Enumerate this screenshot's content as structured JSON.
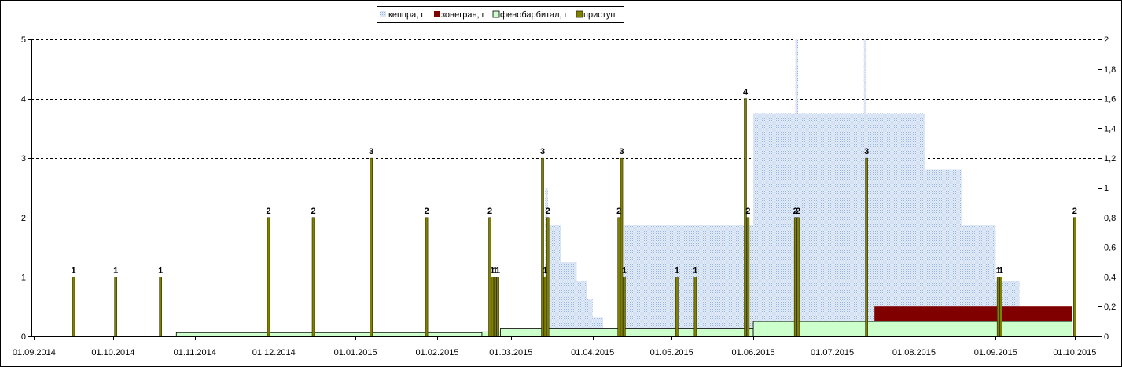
{
  "chart_data": {
    "type": "bar",
    "x_axis": {
      "type": "date",
      "min": "31.08.2014",
      "max": "10.10.2015",
      "ticks": [
        "01.09.2014",
        "01.10.2014",
        "01.11.2014",
        "01.12.2014",
        "01.01.2015",
        "01.02.2015",
        "01.03.2015",
        "01.04.2015",
        "01.05.2015",
        "01.06.2015",
        "01.07.2015",
        "01.08.2015",
        "01.09.2015",
        "01.10.2015"
      ]
    },
    "y_axis_left": {
      "min": 0,
      "max": 5,
      "step": 1,
      "ticks": [
        "0",
        "1",
        "2",
        "3",
        "4",
        "5"
      ]
    },
    "y_axis_right": {
      "min": 0,
      "max": 2,
      "step": 0.2,
      "ticks": [
        "0",
        "0,2",
        "0,4",
        "0,6",
        "0,8",
        "1",
        "1,2",
        "1,4",
        "1,6",
        "1,8",
        "2"
      ]
    },
    "grid": {
      "horizontal": true,
      "vertical": false,
      "style": "dashed"
    },
    "legend": {
      "position": "top"
    },
    "series": [
      {
        "name": "кеппра, г",
        "type": "area",
        "axis": "right",
        "color": "#c6d9f1",
        "segments": [
          {
            "start": "14.03.2015",
            "end": "15.03.2015",
            "value": 1.0
          },
          {
            "start": "15.03.2015",
            "end": "20.03.2015",
            "value": 0.75
          },
          {
            "start": "20.03.2015",
            "end": "26.03.2015",
            "value": 0.5
          },
          {
            "start": "26.03.2015",
            "end": "30.03.2015",
            "value": 0.375
          },
          {
            "start": "30.03.2015",
            "end": "01.04.2015",
            "value": 0.25
          },
          {
            "start": "01.04.2015",
            "end": "05.04.2015",
            "value": 0.125
          },
          {
            "start": "13.04.2015",
            "end": "01.06.2015",
            "value": 0.75
          },
          {
            "start": "01.06.2015",
            "end": "05.08.2015",
            "value": 1.5
          },
          {
            "start": "17.06.2015",
            "end": "18.06.2015",
            "value": 2.0
          },
          {
            "start": "13.07.2015",
            "end": "14.07.2015",
            "value": 2.0
          },
          {
            "start": "05.08.2015",
            "end": "19.08.2015",
            "value": 1.125
          },
          {
            "start": "19.08.2015",
            "end": "01.09.2015",
            "value": 0.75
          },
          {
            "start": "01.09.2015",
            "end": "10.09.2015",
            "value": 0.375
          }
        ]
      },
      {
        "name": "зонегран, г",
        "type": "area",
        "axis": "right",
        "color": "#800000",
        "segments": [
          {
            "start": "17.07.2015",
            "end": "30.09.2015",
            "value": 0.2
          }
        ]
      },
      {
        "name": "фенобарбитал, г",
        "type": "area",
        "axis": "right",
        "color": "#ccffcc",
        "segments": [
          {
            "start": "25.10.2014",
            "end": "18.02.2015",
            "value": 0.025
          },
          {
            "start": "18.02.2015",
            "end": "25.02.2015",
            "value": 0.03
          },
          {
            "start": "25.02.2015",
            "end": "01.06.2015",
            "value": 0.05
          },
          {
            "start": "01.06.2015",
            "end": "30.09.2015",
            "value": 0.1
          }
        ]
      },
      {
        "name": "приступ",
        "type": "bar",
        "axis": "left",
        "color": "#808000",
        "points": [
          {
            "date": "16.09.2014",
            "value": 1
          },
          {
            "date": "02.10.2014",
            "value": 1
          },
          {
            "date": "19.10.2014",
            "value": 1
          },
          {
            "date": "29.11.2014",
            "value": 2
          },
          {
            "date": "16.12.2014",
            "value": 2
          },
          {
            "date": "07.01.2015",
            "value": 3
          },
          {
            "date": "28.01.2015",
            "value": 2
          },
          {
            "date": "21.02.2015",
            "value": 2
          },
          {
            "date": "22.02.2015",
            "value": 1
          },
          {
            "date": "23.02.2015",
            "value": 1
          },
          {
            "date": "24.02.2015",
            "value": 1
          },
          {
            "date": "13.03.2015",
            "value": 3
          },
          {
            "date": "14.03.2015",
            "value": 1
          },
          {
            "date": "15.03.2015",
            "value": 2
          },
          {
            "date": "11.04.2015",
            "value": 2
          },
          {
            "date": "12.04.2015",
            "value": 3
          },
          {
            "date": "13.04.2015",
            "value": 1
          },
          {
            "date": "03.05.2015",
            "value": 1
          },
          {
            "date": "10.05.2015",
            "value": 1
          },
          {
            "date": "29.05.2015",
            "value": 4
          },
          {
            "date": "30.05.2015",
            "value": 2
          },
          {
            "date": "17.06.2015",
            "value": 2
          },
          {
            "date": "18.06.2015",
            "value": 2
          },
          {
            "date": "14.07.2015",
            "value": 3
          },
          {
            "date": "02.09.2015",
            "value": 1
          },
          {
            "date": "03.09.2015",
            "value": 1
          },
          {
            "date": "01.10.2015",
            "value": 2
          }
        ]
      }
    ]
  }
}
